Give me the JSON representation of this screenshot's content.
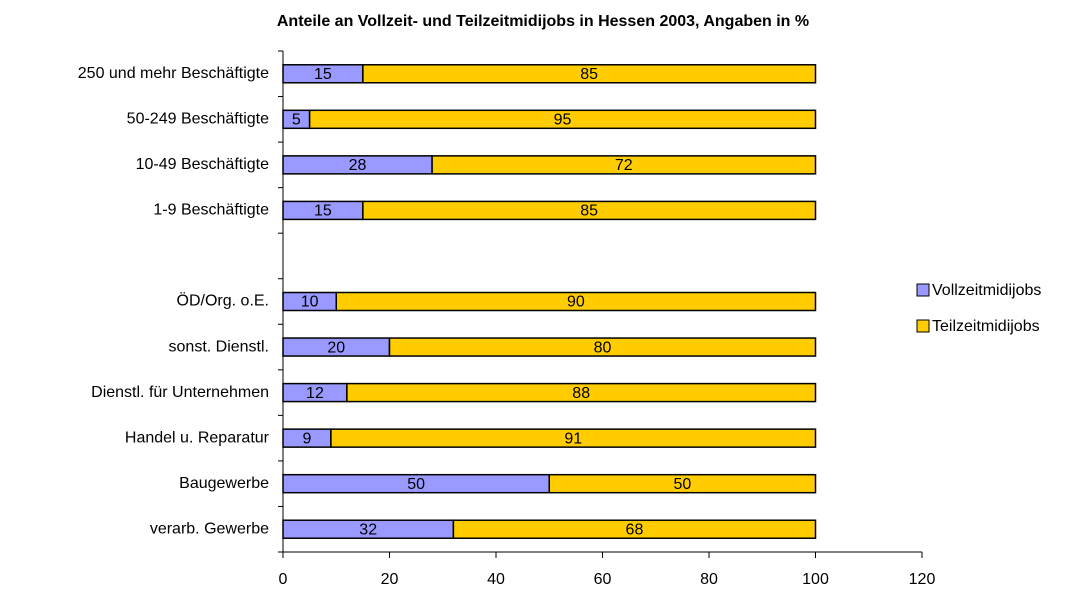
{
  "chart_data": {
    "type": "stacked-bar-horizontal",
    "title": "Anteile an Vollzeit- und Teilzeitmidijobs in Hessen 2003, Angaben in %",
    "categories": [
      "250 und mehr Beschäftigte",
      "50-249 Beschäftigte",
      "10-49 Beschäftigte",
      "1-9 Beschäftigte",
      null,
      "ÖD/Org. o.E.",
      "sonst. Dienstl.",
      "Dienstl. für Unternehmen",
      "Handel u. Reparatur",
      "Baugewerbe",
      "verarb. Gewerbe"
    ],
    "series": [
      {
        "name": "Vollzeitmidijobs",
        "color": "#9999ff",
        "values": [
          15,
          5,
          28,
          15,
          null,
          10,
          20,
          12,
          9,
          50,
          32
        ]
      },
      {
        "name": "Teilzeitmidijobs",
        "color": "#ffcc00",
        "values": [
          85,
          95,
          72,
          85,
          null,
          90,
          80,
          88,
          91,
          50,
          68
        ]
      }
    ],
    "xlim": [
      0,
      120
    ],
    "xticks": [
      0,
      20,
      40,
      60,
      80,
      100,
      120
    ],
    "legend": "right"
  }
}
